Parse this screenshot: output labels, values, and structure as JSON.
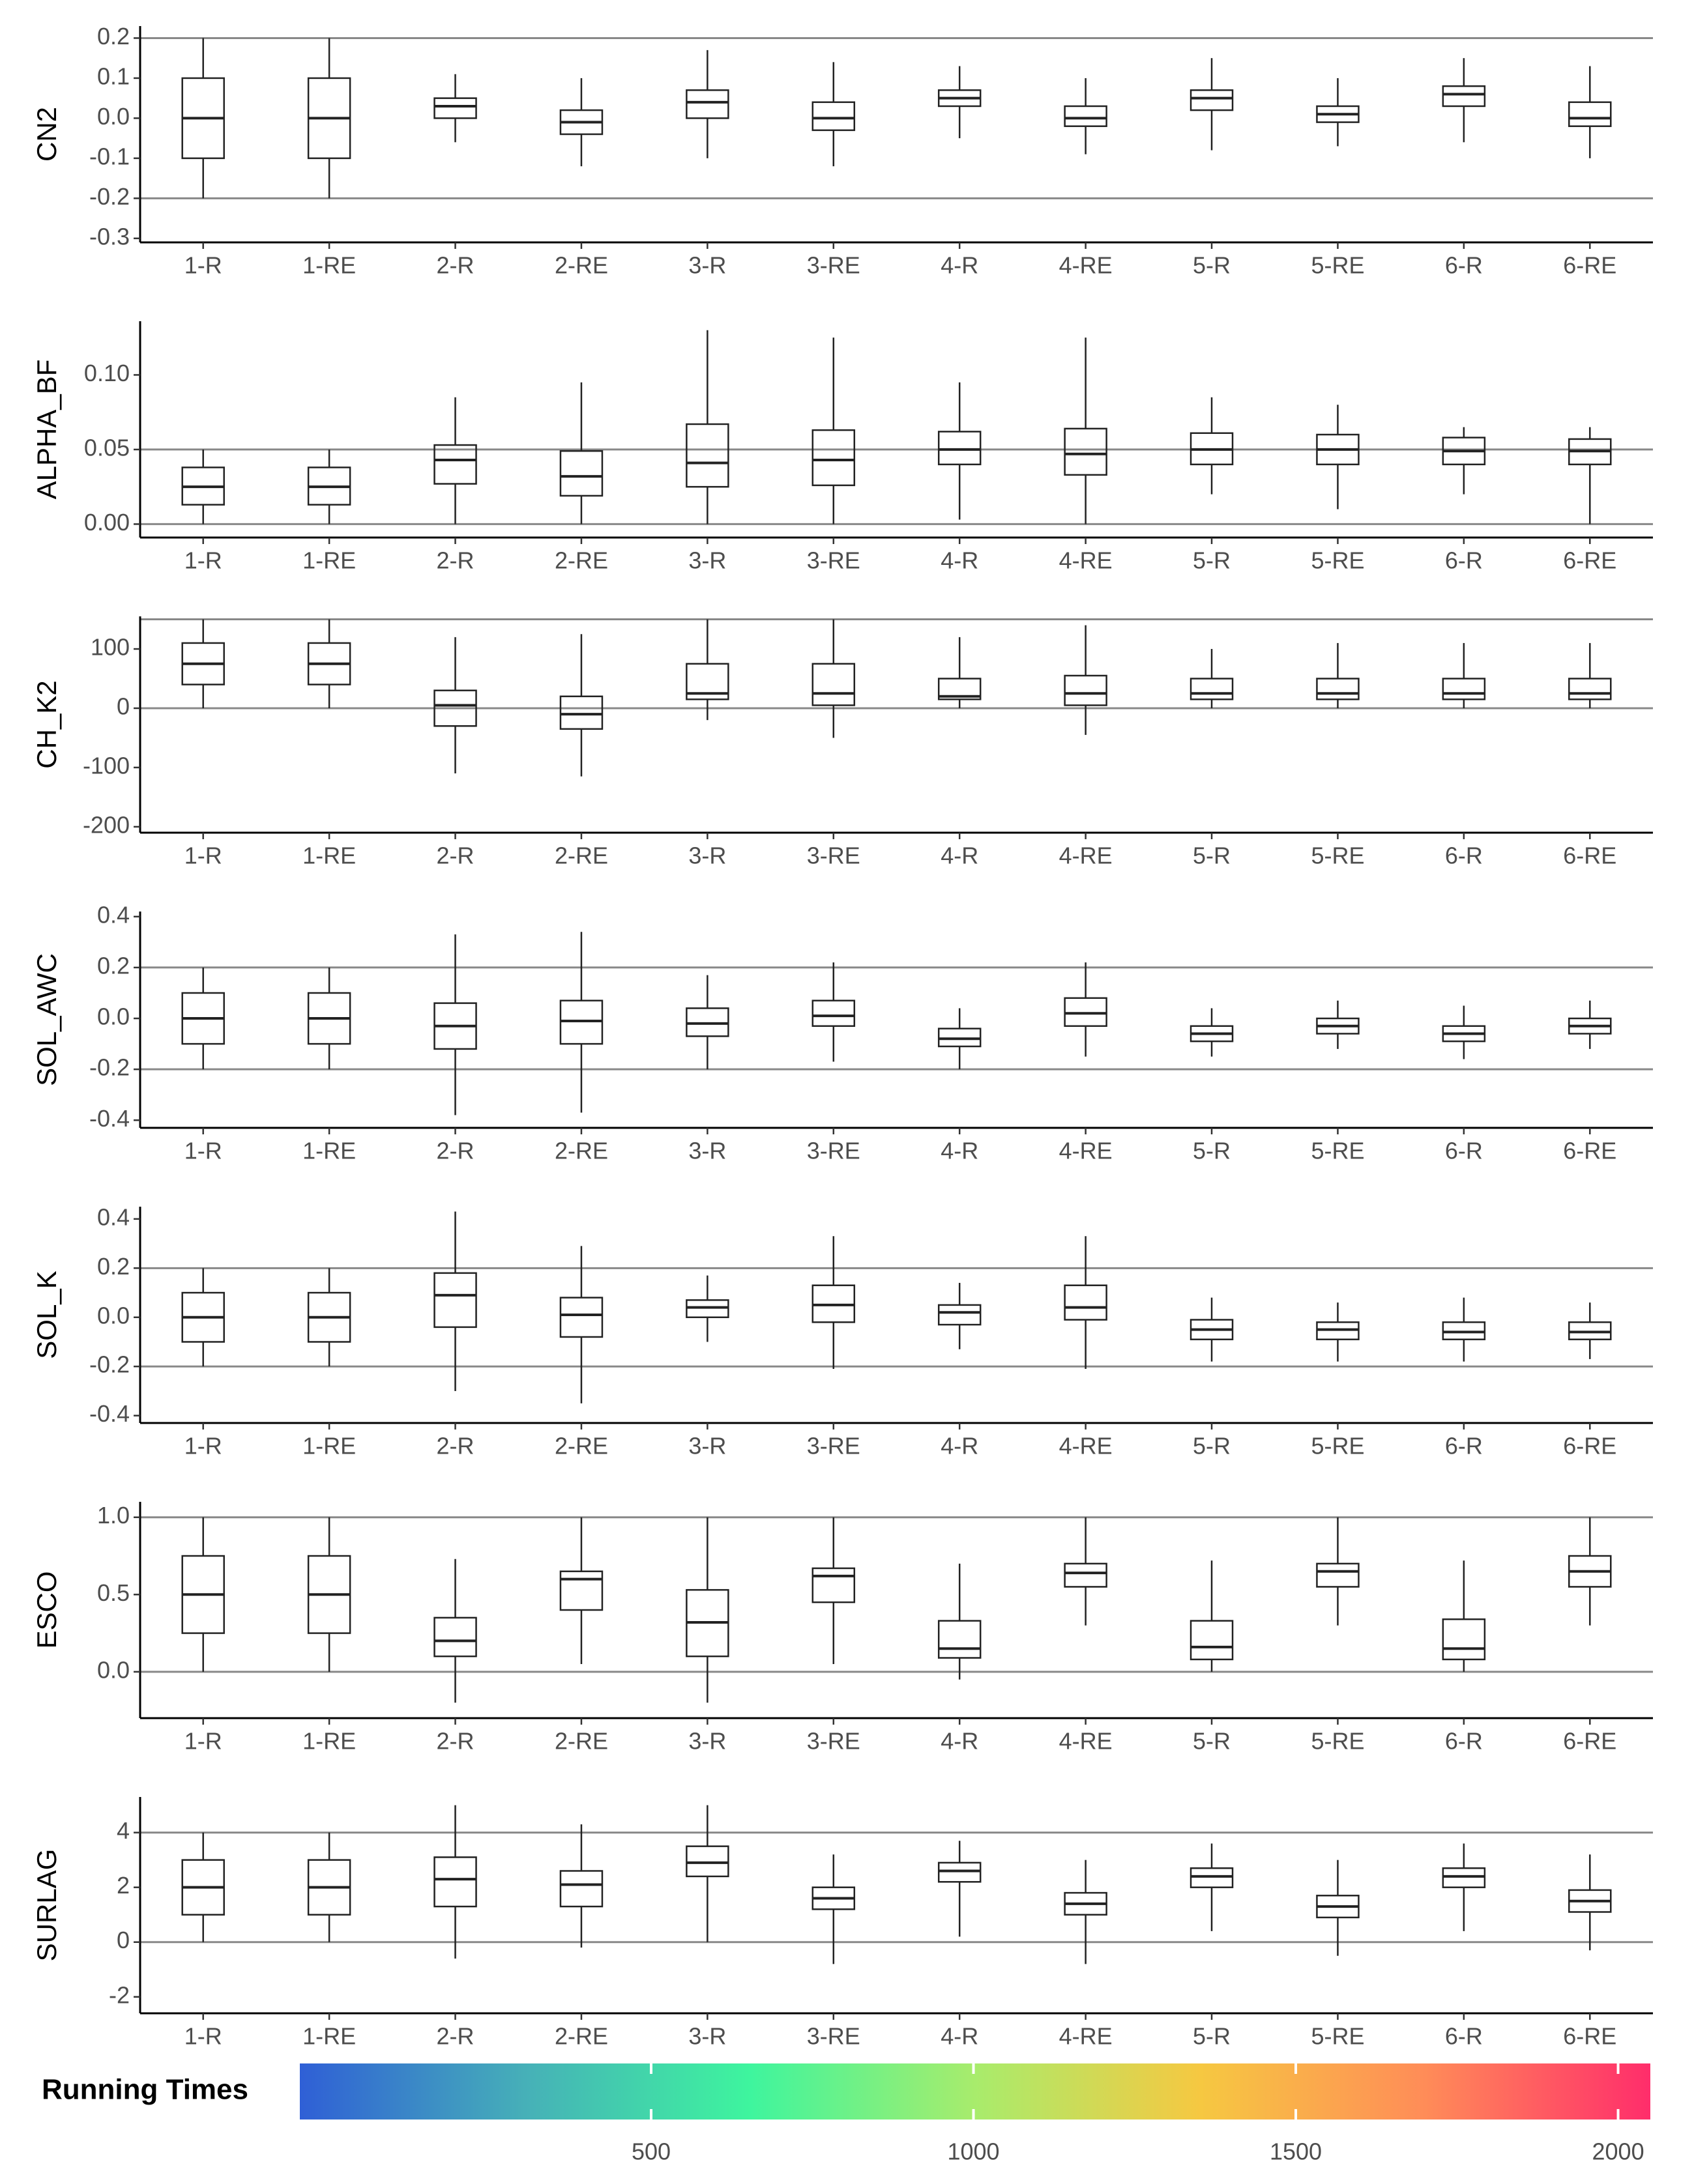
{
  "chart_data": [
    {
      "type": "boxplot",
      "ylabel": "CN2",
      "categories": [
        "1-R",
        "1-RE",
        "2-R",
        "2-RE",
        "3-R",
        "3-RE",
        "4-R",
        "4-RE",
        "5-R",
        "5-RE",
        "6-R",
        "6-RE"
      ],
      "ylim": [
        -0.31,
        0.23
      ],
      "yticks": [
        -0.3,
        -0.2,
        -0.1,
        {
          "value": 0,
          "label": "0.0"
        },
        0.1,
        0.2
      ],
      "hlines": [
        0.2,
        -0.2
      ],
      "boxes": [
        [
          -0.2,
          -0.1,
          0,
          0.1,
          0.2
        ],
        [
          -0.2,
          -0.1,
          0,
          0.1,
          0.2
        ],
        [
          -0.06,
          0.0,
          0.03,
          0.05,
          0.11
        ],
        [
          -0.12,
          -0.04,
          -0.01,
          0.02,
          0.1
        ],
        [
          -0.1,
          0.0,
          0.04,
          0.07,
          0.17
        ],
        [
          -0.12,
          -0.03,
          0.0,
          0.04,
          0.14
        ],
        [
          -0.05,
          0.03,
          0.05,
          0.07,
          0.13
        ],
        [
          -0.09,
          -0.02,
          0.0,
          0.03,
          0.1
        ],
        [
          -0.08,
          0.02,
          0.05,
          0.07,
          0.15
        ],
        [
          -0.07,
          -0.01,
          0.01,
          0.03,
          0.1
        ],
        [
          -0.06,
          0.03,
          0.06,
          0.08,
          0.15
        ],
        [
          -0.1,
          -0.02,
          0.0,
          0.04,
          0.13
        ]
      ]
    },
    {
      "type": "boxplot",
      "ylabel": "ALPHA_BF",
      "categories": [
        "1-R",
        "1-RE",
        "2-R",
        "2-RE",
        "3-R",
        "3-RE",
        "4-R",
        "4-RE",
        "5-R",
        "5-RE",
        "6-R",
        "6-RE"
      ],
      "ylim": [
        -0.009,
        0.136
      ],
      "yticks": [
        {
          "value": 0,
          "label": "0.00"
        },
        {
          "value": 0.05,
          "label": "0.05"
        },
        {
          "value": 0.1,
          "label": "0.10"
        }
      ],
      "hlines": [
        0.05,
        0
      ],
      "boxes": [
        [
          0.0,
          0.013,
          0.025,
          0.038,
          0.05
        ],
        [
          0.0,
          0.013,
          0.025,
          0.038,
          0.05
        ],
        [
          0.0,
          0.027,
          0.043,
          0.053,
          0.085
        ],
        [
          0.0,
          0.019,
          0.032,
          0.049,
          0.095
        ],
        [
          0.0,
          0.025,
          0.041,
          0.067,
          0.13
        ],
        [
          0.0,
          0.026,
          0.043,
          0.063,
          0.125
        ],
        [
          0.003,
          0.04,
          0.05,
          0.062,
          0.095
        ],
        [
          0.0,
          0.033,
          0.047,
          0.064,
          0.125
        ],
        [
          0.02,
          0.04,
          0.05,
          0.061,
          0.085
        ],
        [
          0.01,
          0.04,
          0.05,
          0.06,
          0.08
        ],
        [
          0.02,
          0.04,
          0.049,
          0.058,
          0.065
        ],
        [
          0.0,
          0.04,
          0.049,
          0.057,
          0.065
        ]
      ]
    },
    {
      "type": "boxplot",
      "ylabel": "CH_K2",
      "categories": [
        "1-R",
        "1-RE",
        "2-R",
        "2-RE",
        "3-R",
        "3-RE",
        "4-R",
        "4-RE",
        "5-R",
        "5-RE",
        "6-R",
        "6-RE"
      ],
      "ylim": [
        -210,
        155
      ],
      "yticks": [
        -200,
        -100,
        0,
        100
      ],
      "hlines": [
        150,
        0
      ],
      "boxes": [
        [
          0,
          40,
          75,
          110,
          150
        ],
        [
          0,
          40,
          75,
          110,
          150
        ],
        [
          -110,
          -30,
          5,
          30,
          120
        ],
        [
          -115,
          -35,
          -10,
          20,
          125
        ],
        [
          -20,
          15,
          25,
          75,
          150
        ],
        [
          -50,
          5,
          25,
          75,
          150
        ],
        [
          0,
          15,
          20,
          50,
          120
        ],
        [
          -45,
          5,
          25,
          55,
          140
        ],
        [
          0,
          15,
          25,
          50,
          100
        ],
        [
          0,
          15,
          25,
          50,
          110
        ],
        [
          0,
          15,
          25,
          50,
          110
        ],
        [
          0,
          15,
          25,
          50,
          110
        ]
      ]
    },
    {
      "type": "boxplot",
      "ylabel": "SOL_AWC",
      "categories": [
        "1-R",
        "1-RE",
        "2-R",
        "2-RE",
        "3-R",
        "3-RE",
        "4-R",
        "4-RE",
        "5-R",
        "5-RE",
        "6-R",
        "6-RE"
      ],
      "ylim": [
        -0.43,
        0.42
      ],
      "yticks": [
        -0.4,
        -0.2,
        {
          "value": 0,
          "label": "0.0"
        },
        0.2,
        0.4
      ],
      "hlines": [
        0.2,
        -0.2
      ],
      "boxes": [
        [
          -0.2,
          -0.1,
          0,
          0.1,
          0.2
        ],
        [
          -0.2,
          -0.1,
          0,
          0.1,
          0.2
        ],
        [
          -0.38,
          -0.12,
          -0.03,
          0.06,
          0.33
        ],
        [
          -0.37,
          -0.1,
          -0.01,
          0.07,
          0.34
        ],
        [
          -0.2,
          -0.07,
          -0.02,
          0.04,
          0.17
        ],
        [
          -0.17,
          -0.03,
          0.01,
          0.07,
          0.22
        ],
        [
          -0.2,
          -0.11,
          -0.08,
          -0.04,
          0.04
        ],
        [
          -0.15,
          -0.03,
          0.02,
          0.08,
          0.22
        ],
        [
          -0.15,
          -0.09,
          -0.06,
          -0.03,
          0.04
        ],
        [
          -0.12,
          -0.06,
          -0.03,
          0.0,
          0.07
        ],
        [
          -0.16,
          -0.09,
          -0.06,
          -0.03,
          0.05
        ],
        [
          -0.12,
          -0.06,
          -0.03,
          0.0,
          0.07
        ]
      ]
    },
    {
      "type": "boxplot",
      "ylabel": "SOL_K",
      "categories": [
        "1-R",
        "1-RE",
        "2-R",
        "2-RE",
        "3-R",
        "3-RE",
        "4-R",
        "4-RE",
        "5-R",
        "5-RE",
        "6-R",
        "6-RE"
      ],
      "ylim": [
        -0.43,
        0.45
      ],
      "yticks": [
        -0.4,
        -0.2,
        {
          "value": 0,
          "label": "0.0"
        },
        0.2,
        0.4
      ],
      "hlines": [
        0.2,
        -0.2
      ],
      "boxes": [
        [
          -0.2,
          -0.1,
          0,
          0.1,
          0.2
        ],
        [
          -0.2,
          -0.1,
          0,
          0.1,
          0.2
        ],
        [
          -0.3,
          -0.04,
          0.09,
          0.18,
          0.43
        ],
        [
          -0.35,
          -0.08,
          0.01,
          0.08,
          0.29
        ],
        [
          -0.1,
          0.0,
          0.04,
          0.07,
          0.17
        ],
        [
          -0.21,
          -0.02,
          0.05,
          0.13,
          0.33
        ],
        [
          -0.13,
          -0.03,
          0.02,
          0.05,
          0.14
        ],
        [
          -0.21,
          -0.01,
          0.04,
          0.13,
          0.33
        ],
        [
          -0.18,
          -0.09,
          -0.05,
          -0.01,
          0.08
        ],
        [
          -0.18,
          -0.09,
          -0.05,
          -0.02,
          0.06
        ],
        [
          -0.18,
          -0.09,
          -0.06,
          -0.02,
          0.08
        ],
        [
          -0.17,
          -0.09,
          -0.06,
          -0.02,
          0.06
        ]
      ]
    },
    {
      "type": "boxplot",
      "ylabel": "ESCO",
      "categories": [
        "1-R",
        "1-RE",
        "2-R",
        "2-RE",
        "3-R",
        "3-RE",
        "4-R",
        "4-RE",
        "5-R",
        "5-RE",
        "6-R",
        "6-RE"
      ],
      "ylim": [
        -0.3,
        1.1
      ],
      "yticks": [
        {
          "value": 0,
          "label": "0.0"
        },
        0.5,
        {
          "value": 1,
          "label": "1.0"
        }
      ],
      "hlines": [
        1,
        0
      ],
      "boxes": [
        [
          0,
          0.25,
          0.5,
          0.75,
          1.0
        ],
        [
          0,
          0.25,
          0.5,
          0.75,
          1.0
        ],
        [
          -0.2,
          0.1,
          0.2,
          0.35,
          0.73
        ],
        [
          0.05,
          0.4,
          0.6,
          0.65,
          1.0
        ],
        [
          -0.2,
          0.1,
          0.32,
          0.53,
          1.0
        ],
        [
          0.05,
          0.45,
          0.62,
          0.67,
          1.0
        ],
        [
          -0.05,
          0.09,
          0.15,
          0.33,
          0.7
        ],
        [
          0.3,
          0.55,
          0.64,
          0.7,
          1.0
        ],
        [
          0.0,
          0.08,
          0.16,
          0.33,
          0.72
        ],
        [
          0.3,
          0.55,
          0.65,
          0.7,
          1.0
        ],
        [
          0.0,
          0.08,
          0.15,
          0.34,
          0.72
        ],
        [
          0.3,
          0.55,
          0.65,
          0.75,
          1.0
        ]
      ]
    },
    {
      "type": "boxplot",
      "ylabel": "SURLAG",
      "categories": [
        "1-R",
        "1-RE",
        "2-R",
        "2-RE",
        "3-R",
        "3-RE",
        "4-R",
        "4-RE",
        "5-R",
        "5-RE",
        "6-R",
        "6-RE"
      ],
      "ylim": [
        -2.6,
        5.3
      ],
      "yticks": [
        -2,
        0,
        2,
        4
      ],
      "hlines": [
        4,
        0
      ],
      "boxes": [
        [
          0,
          1,
          2,
          3,
          4
        ],
        [
          0,
          1,
          2,
          3,
          4
        ],
        [
          -0.6,
          1.3,
          2.3,
          3.1,
          5
        ],
        [
          -0.2,
          1.3,
          2.1,
          2.6,
          4.3
        ],
        [
          0,
          2.4,
          2.9,
          3.5,
          5
        ],
        [
          -0.8,
          1.2,
          1.6,
          2.0,
          3.2
        ],
        [
          0.2,
          2.2,
          2.6,
          2.9,
          3.7
        ],
        [
          -0.8,
          1,
          1.4,
          1.8,
          3
        ],
        [
          0.4,
          2.0,
          2.4,
          2.7,
          3.6
        ],
        [
          -0.5,
          0.9,
          1.3,
          1.7,
          3.0
        ],
        [
          0.4,
          2.0,
          2.4,
          2.7,
          3.6
        ],
        [
          -0.3,
          1.1,
          1.5,
          1.9,
          3.2
        ]
      ]
    }
  ],
  "legend": {
    "title": "Running Times",
    "lim": [
      -45,
      2050
    ],
    "ticks": [
      500,
      1000,
      1500,
      2000
    ],
    "colors": [
      "#2f5fd6",
      "#46b0b8",
      "#3ef59e",
      "#a8ec6c",
      "#f6c841",
      "#ff8c58",
      "#ff2d6b"
    ]
  }
}
